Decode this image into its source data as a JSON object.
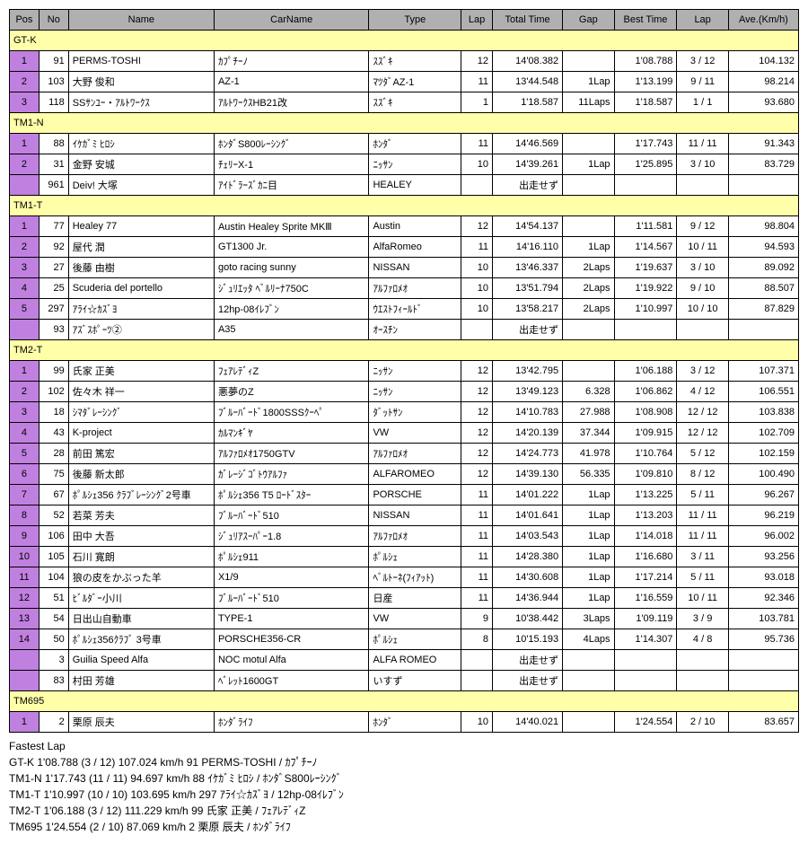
{
  "headers": [
    "Pos",
    "No",
    "Name",
    "CarName",
    "Type",
    "Lap",
    "Total Time",
    "Gap",
    "Best Time",
    "Lap",
    "Ave.(Km/h)"
  ],
  "groups": [
    {
      "name": "GT-K",
      "rows": [
        {
          "pos": "1",
          "no": "91",
          "name": "PERMS-TOSHI",
          "car": "ｶﾌﾟﾁｰﾉ",
          "type": "ｽｽﾞｷ",
          "lap": "12",
          "total": "14'08.382",
          "gap": "",
          "best": "1'08.788",
          "lap2": "3 / 12",
          "ave": "104.132"
        },
        {
          "pos": "2",
          "no": "103",
          "name": "大野 俊和",
          "car": "AZ-1",
          "type": "ﾏﾂﾀﾞAZ-1",
          "lap": "11",
          "total": "13'44.548",
          "gap": "1Lap",
          "best": "1'13.199",
          "lap2": "9 / 11",
          "ave": "98.214"
        },
        {
          "pos": "3",
          "no": "118",
          "name": "SSｻﾝﾕｰ・ｱﾙﾄﾜｰｸｽ",
          "car": "ｱﾙﾄﾜｰｸｽHB21改",
          "type": "ｽｽﾞｷ",
          "lap": "1",
          "total": "1'18.587",
          "gap": "11Laps",
          "best": "1'18.587",
          "lap2": "1 / 1",
          "ave": "93.680"
        }
      ]
    },
    {
      "name": "TM1-N",
      "rows": [
        {
          "pos": "1",
          "no": "88",
          "name": "ｲｹｶﾞﾐ ﾋﾛｼ",
          "car": "ﾎﾝﾀﾞS800ﾚｰｼﾝｸﾞ",
          "type": "ﾎﾝﾀﾞ",
          "lap": "11",
          "total": "14'46.569",
          "gap": "",
          "best": "1'17.743",
          "lap2": "11 / 11",
          "ave": "91.343"
        },
        {
          "pos": "2",
          "no": "31",
          "name": "金野 安城",
          "car": "ﾁｪﾘｰX-1",
          "type": "ﾆｯｻﾝ",
          "lap": "10",
          "total": "14'39.261",
          "gap": "1Lap",
          "best": "1'25.895",
          "lap2": "3 / 10",
          "ave": "83.729"
        },
        {
          "pos": "",
          "no": "961",
          "name": "Deiv! 大塚",
          "car": "ｱｲﾄﾞﾗｰｽﾞｶﾆ目",
          "type": "HEALEY",
          "lap": "",
          "total": "出走せず",
          "gap": "",
          "best": "",
          "lap2": "",
          "ave": ""
        }
      ]
    },
    {
      "name": "TM1-T",
      "rows": [
        {
          "pos": "1",
          "no": "77",
          "name": "Healey 77",
          "car": "Austin Healey Sprite MKⅢ",
          "type": "Austin",
          "lap": "12",
          "total": "14'54.137",
          "gap": "",
          "best": "1'11.581",
          "lap2": "9 / 12",
          "ave": "98.804"
        },
        {
          "pos": "2",
          "no": "92",
          "name": "屋代 潤",
          "car": "GT1300 Jr.",
          "type": "AlfaRomeo",
          "lap": "11",
          "total": "14'16.110",
          "gap": "1Lap",
          "best": "1'14.567",
          "lap2": "10 / 11",
          "ave": "94.593"
        },
        {
          "pos": "3",
          "no": "27",
          "name": "後藤 由樹",
          "car": "goto racing sunny",
          "type": "NISSAN",
          "lap": "10",
          "total": "13'46.337",
          "gap": "2Laps",
          "best": "1'19.637",
          "lap2": "3 / 10",
          "ave": "89.092"
        },
        {
          "pos": "4",
          "no": "25",
          "name": "Scuderia del portello",
          "car": "ｼﾞｭﾘｴｯﾀ ﾍﾞﾙﾘｰﾅ750C",
          "type": "ｱﾙﾌｧﾛﾒｵ",
          "lap": "10",
          "total": "13'51.794",
          "gap": "2Laps",
          "best": "1'19.922",
          "lap2": "9 / 10",
          "ave": "88.507"
        },
        {
          "pos": "5",
          "no": "297",
          "name": "ｱﾗｲ☆ｶｽﾞﾖ",
          "car": "12hp-08ｲﾚﾌﾞﾝ",
          "type": "ｳｴｽﾄﾌｨｰﾙﾄﾞ",
          "lap": "10",
          "total": "13'58.217",
          "gap": "2Laps",
          "best": "1'10.997",
          "lap2": "10 / 10",
          "ave": "87.829"
        },
        {
          "pos": "",
          "no": "93",
          "name": "ｱｽﾞｽﾎﾟｰﾂ②",
          "car": "A35",
          "type": "ｵｰｽﾁﾝ",
          "lap": "",
          "total": "出走せず",
          "gap": "",
          "best": "",
          "lap2": "",
          "ave": ""
        }
      ]
    },
    {
      "name": "TM2-T",
      "rows": [
        {
          "pos": "1",
          "no": "99",
          "name": "氏家 正美",
          "car": "ﾌｪｱﾚﾃﾞｨZ",
          "type": "ﾆｯｻﾝ",
          "lap": "12",
          "total": "13'42.795",
          "gap": "",
          "best": "1'06.188",
          "lap2": "3 / 12",
          "ave": "107.371"
        },
        {
          "pos": "2",
          "no": "102",
          "name": "佐々木 祥一",
          "car": "悪夢のZ",
          "type": "ﾆｯｻﾝ",
          "lap": "12",
          "total": "13'49.123",
          "gap": "6.328",
          "best": "1'06.862",
          "lap2": "4 / 12",
          "ave": "106.551"
        },
        {
          "pos": "3",
          "no": "18",
          "name": "ｼﾏﾀﾞﾚｰｼﾝｸﾞ",
          "car": "ﾌﾞﾙｰﾊﾞｰﾄﾞ1800SSSｸｰﾍﾟ",
          "type": "ﾀﾞｯﾄｻﾝ",
          "lap": "12",
          "total": "14'10.783",
          "gap": "27.988",
          "best": "1'08.908",
          "lap2": "12 / 12",
          "ave": "103.838"
        },
        {
          "pos": "4",
          "no": "43",
          "name": "K-project",
          "car": "ｶﾙﾏﾝｷﾞﾔ",
          "type": "VW",
          "lap": "12",
          "total": "14'20.139",
          "gap": "37.344",
          "best": "1'09.915",
          "lap2": "12 / 12",
          "ave": "102.709"
        },
        {
          "pos": "5",
          "no": "28",
          "name": "前田 篤宏",
          "car": "ｱﾙﾌｧﾛﾒｵ1750GTV",
          "type": "ｱﾙﾌｧﾛﾒｵ",
          "lap": "12",
          "total": "14'24.773",
          "gap": "41.978",
          "best": "1'10.764",
          "lap2": "5 / 12",
          "ave": "102.159"
        },
        {
          "pos": "6",
          "no": "75",
          "name": "後藤 新太郎",
          "car": "ｶﾞﾚｰｼﾞｺﾞﾄｳｱﾙﾌｧ",
          "type": "ALFAROMEO",
          "lap": "12",
          "total": "14'39.130",
          "gap": "56.335",
          "best": "1'09.810",
          "lap2": "8 / 12",
          "ave": "100.490"
        },
        {
          "pos": "7",
          "no": "67",
          "name": "ﾎﾟﾙｼｪ356 ｸﾗﾌﾞﾚｰｼﾝｸﾞ2号車",
          "car": "ﾎﾟﾙｼｪ356 T5 ﾛｰﾄﾞｽﾀｰ",
          "type": "PORSCHE",
          "lap": "11",
          "total": "14'01.222",
          "gap": "1Lap",
          "best": "1'13.225",
          "lap2": "5 / 11",
          "ave": "96.267"
        },
        {
          "pos": "8",
          "no": "52",
          "name": "若菜 芳夫",
          "car": "ﾌﾞﾙｰﾊﾞｰﾄﾞ510",
          "type": "NISSAN",
          "lap": "11",
          "total": "14'01.641",
          "gap": "1Lap",
          "best": "1'13.203",
          "lap2": "11 / 11",
          "ave": "96.219"
        },
        {
          "pos": "9",
          "no": "106",
          "name": "田中 大吾",
          "car": "ｼﾞｭﾘｱｽｰﾊﾟｰ1.8",
          "type": "ｱﾙﾌｧﾛﾒｵ",
          "lap": "11",
          "total": "14'03.543",
          "gap": "1Lap",
          "best": "1'14.018",
          "lap2": "11 / 11",
          "ave": "96.002"
        },
        {
          "pos": "10",
          "no": "105",
          "name": "石川 寛朗",
          "car": "ﾎﾟﾙｼｪ911",
          "type": "ﾎﾟﾙｼｪ",
          "lap": "11",
          "total": "14'28.380",
          "gap": "1Lap",
          "best": "1'16.680",
          "lap2": "3 / 11",
          "ave": "93.256"
        },
        {
          "pos": "11",
          "no": "104",
          "name": "狼の皮をかぶった羊",
          "car": "X1/9",
          "type": "ﾍﾞﾙﾄｰﾈ(ﾌｨｱｯﾄ)",
          "lap": "11",
          "total": "14'30.608",
          "gap": "1Lap",
          "best": "1'17.214",
          "lap2": "5 / 11",
          "ave": "93.018"
        },
        {
          "pos": "12",
          "no": "51",
          "name": "ﾋﾞﾙﾀﾞｰ小川",
          "car": "ﾌﾞﾙｰﾊﾞｰﾄﾞ510",
          "type": "日産",
          "lap": "11",
          "total": "14'36.944",
          "gap": "1Lap",
          "best": "1'16.559",
          "lap2": "10 / 11",
          "ave": "92.346"
        },
        {
          "pos": "13",
          "no": "54",
          "name": "日出山自動車",
          "car": "TYPE-1",
          "type": "VW",
          "lap": "9",
          "total": "10'38.442",
          "gap": "3Laps",
          "best": "1'09.119",
          "lap2": "3 / 9",
          "ave": "103.781"
        },
        {
          "pos": "14",
          "no": "50",
          "name": "ﾎﾟﾙｼｪ356ｸﾗﾌﾞ 3号車",
          "car": "PORSCHE356-CR",
          "type": "ﾎﾟﾙｼｪ",
          "lap": "8",
          "total": "10'15.193",
          "gap": "4Laps",
          "best": "1'14.307",
          "lap2": "4 / 8",
          "ave": "95.736"
        },
        {
          "pos": "",
          "no": "3",
          "name": "Guilia Speed Alfa",
          "car": "NOC motul Alfa",
          "type": "ALFA ROMEO",
          "lap": "",
          "total": "出走せず",
          "gap": "",
          "best": "",
          "lap2": "",
          "ave": ""
        },
        {
          "pos": "",
          "no": "83",
          "name": "村田 芳雄",
          "car": "ﾍﾞﾚｯﾄ1600GT",
          "type": "いすず",
          "lap": "",
          "total": "出走せず",
          "gap": "",
          "best": "",
          "lap2": "",
          "ave": ""
        }
      ]
    },
    {
      "name": "TM695",
      "rows": [
        {
          "pos": "1",
          "no": "2",
          "name": "栗原 辰夫",
          "car": "ﾎﾝﾀﾞﾗｲﾌ",
          "type": "ﾎﾝﾀﾞ",
          "lap": "10",
          "total": "14'40.021",
          "gap": "",
          "best": "1'24.554",
          "lap2": "2 / 10",
          "ave": "83.657"
        }
      ]
    }
  ],
  "fastest": {
    "title": "Fastest Lap",
    "lines": [
      "GT-K 1'08.788 (3 / 12) 107.024 km/h 91 PERMS-TOSHI / ｶﾌﾟﾁｰﾉ",
      "TM1-N 1'17.743 (11 / 11) 94.697 km/h 88 ｲｹｶﾞﾐ ﾋﾛｼ / ﾎﾝﾀﾞS800ﾚｰｼﾝｸﾞ",
      "TM1-T 1'10.997 (10 / 10) 103.695 km/h 297 ｱﾗｲ☆ｶｽﾞﾖ / 12hp-08ｲﾚﾌﾞﾝ",
      "TM2-T 1'06.188 (3 / 12) 111.229 km/h 99 氏家 正美 / ﾌｪｱﾚﾃﾞｨZ",
      "TM695 1'24.554 (2 / 10) 87.069 km/h 2 栗原 辰夫 / ﾎﾝﾀﾞﾗｲﾌ"
    ]
  }
}
